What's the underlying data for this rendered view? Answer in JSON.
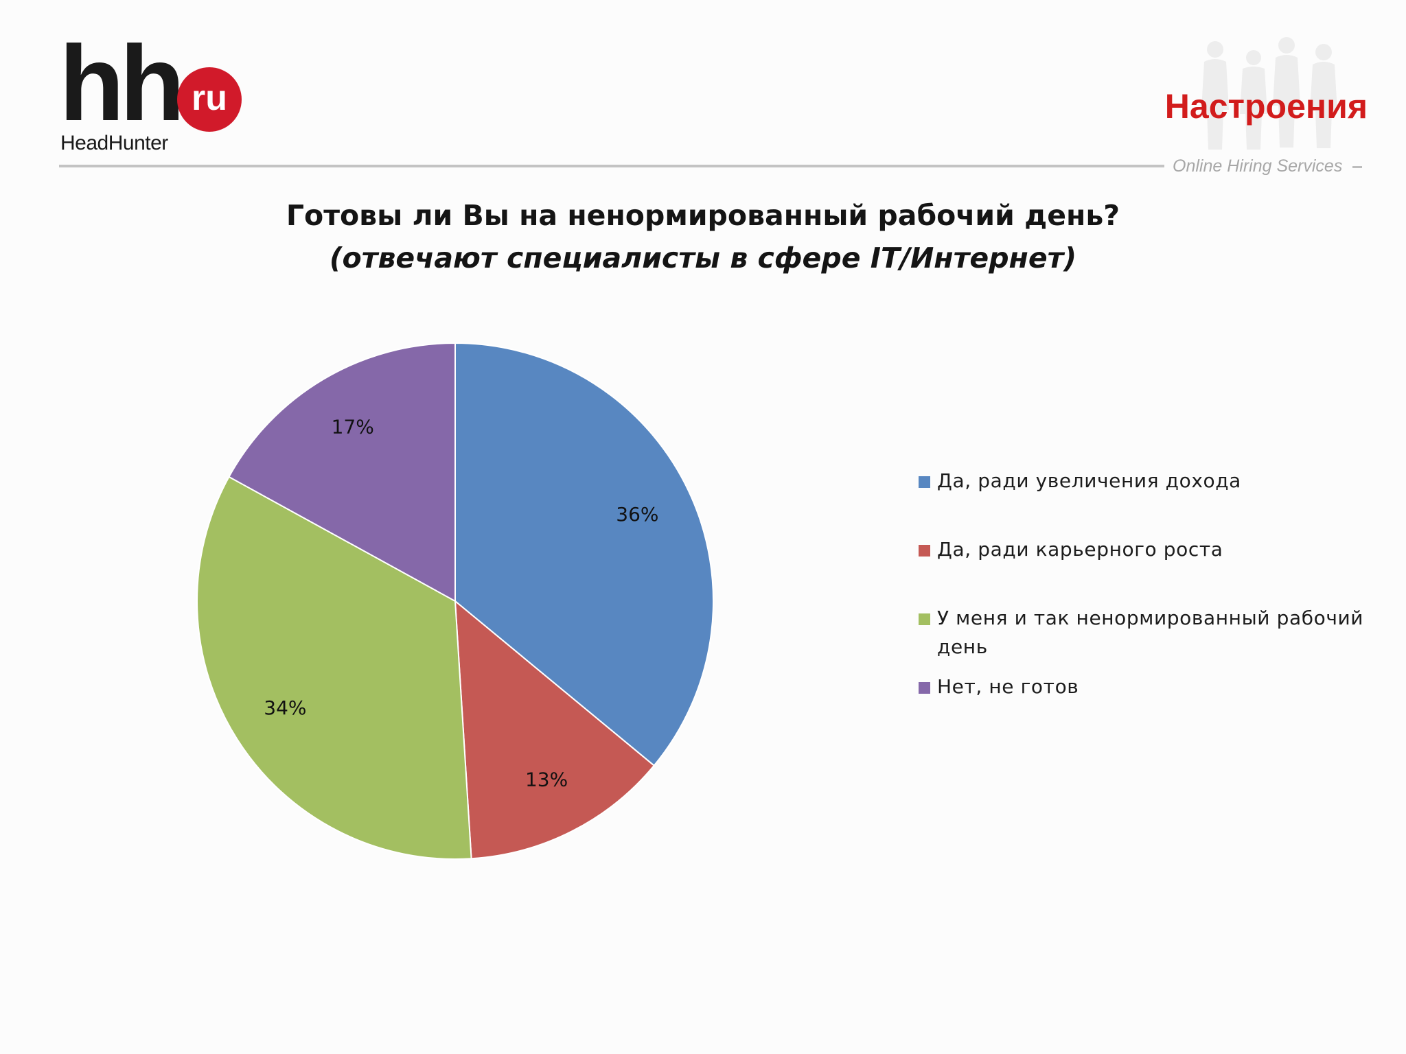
{
  "logo": {
    "mark": "hh",
    "badge": "ru",
    "brand": "HeadHunter"
  },
  "header": {
    "section_title": "Настроения",
    "tagline": "Online Hiring Services"
  },
  "colors": {
    "accent_red": "#d21c1c",
    "logo_red": "#d11a2a",
    "slice_blue": "#5887c1",
    "slice_red": "#c55954",
    "slice_green": "#a3bf61",
    "slice_purple": "#8568a9"
  },
  "chart_data": {
    "type": "pie",
    "title": "Готовы ли Вы на ненормированный рабочий день?",
    "subtitle": "(отвечают специалисты в сфере IT/Интернет)",
    "start_angle_deg": 0,
    "direction": "clockwise",
    "legend_position": "right",
    "slices": [
      {
        "label": "Да, ради увеличения дохода",
        "value": 36,
        "value_label": "36%",
        "color": "#5887c1"
      },
      {
        "label": "Да, ради карьерного роста",
        "value": 13,
        "value_label": "13%",
        "color": "#c55954"
      },
      {
        "label": "У меня и так ненормированный рабочий день",
        "value": 34,
        "value_label": "34%",
        "color": "#a3bf61"
      },
      {
        "label": "Нет, не готов",
        "value": 17,
        "value_label": "17%",
        "color": "#8568a9"
      }
    ]
  }
}
